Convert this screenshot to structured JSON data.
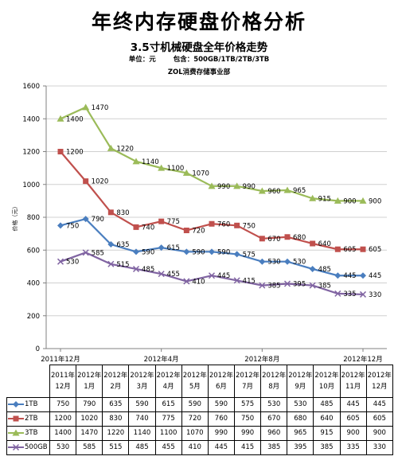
{
  "header": {
    "title": "年终内存硬盘价格分析",
    "subtitle": "3.5寸机械硬盘全年价格走势",
    "unit_label": "单位：元",
    "includes_label": "包含：500GB/1TB/2TB/3TB",
    "credit": "ZOL消费存储事业部"
  },
  "chart_data": {
    "type": "line",
    "title": "3.5寸机械硬盘全年价格走势",
    "ylabel": "价格（元）",
    "ylim": [
      0,
      1600
    ],
    "yticks": [
      "0",
      "200",
      "400",
      "600",
      "800",
      "1000",
      "1200",
      "1400",
      "1600"
    ],
    "x_axis_labels": [
      "2011年12月",
      "2012年4月",
      "2012年8月",
      "2012年12月"
    ],
    "categories": [
      "2011年12月",
      "2012年1月",
      "2012年2月",
      "2012年3月",
      "2012年4月",
      "2012年5月",
      "2012年6月",
      "2012年7月",
      "2012年8月",
      "2012年9月",
      "2012年10月",
      "2012年11月",
      "2012年12月"
    ],
    "table_headers": [
      "2011年12月",
      "2012年1月",
      "2012年2月",
      "2012年3月",
      "2012年4月",
      "2012年5月",
      "2012年6月",
      "2012年7月",
      "2012年8月",
      "2012年9月",
      "2012年10月",
      "2012年11月",
      "2012年12月"
    ],
    "series": [
      {
        "name": "1TB",
        "color": "#4a7ebf",
        "marker": "diamond",
        "values": [
          750,
          790,
          635,
          590,
          615,
          590,
          590,
          575,
          530,
          530,
          485,
          445,
          445
        ]
      },
      {
        "name": "2TB",
        "color": "#c0504d",
        "marker": "square",
        "values": [
          1200,
          1020,
          830,
          740,
          775,
          720,
          760,
          750,
          670,
          680,
          640,
          605,
          605
        ]
      },
      {
        "name": "3TB",
        "color": "#9bbb59",
        "marker": "triangle",
        "values": [
          1400,
          1470,
          1220,
          1140,
          1100,
          1070,
          990,
          990,
          960,
          965,
          915,
          900,
          900
        ]
      },
      {
        "name": "500GB",
        "color": "#8064a2",
        "marker": "x",
        "values": [
          530,
          585,
          515,
          485,
          455,
          410,
          445,
          415,
          385,
          395,
          385,
          335,
          330
        ]
      }
    ],
    "grid": true,
    "legend": "table-below"
  }
}
